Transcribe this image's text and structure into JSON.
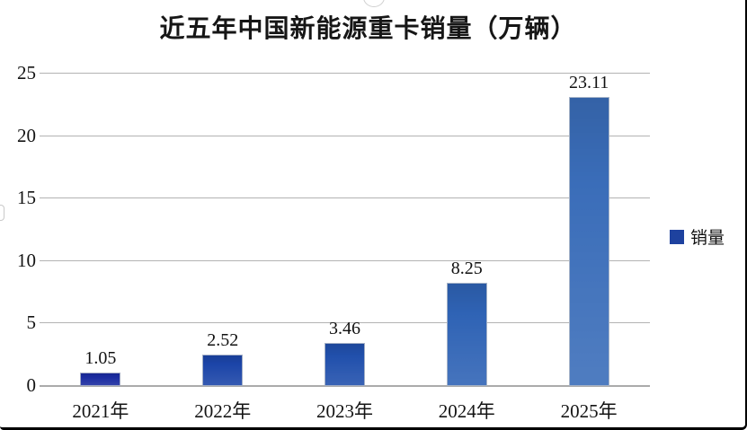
{
  "title": "近五年中国新能源重卡销量（万辆）",
  "legend": {
    "label": "销量",
    "swatch_color": "#1e429f"
  },
  "chart_data": {
    "type": "bar",
    "title": "近五年中国新能源重卡销量（万辆）",
    "categories": [
      "2021年",
      "2022年",
      "2023年",
      "2024年",
      "2025年"
    ],
    "series": [
      {
        "name": "销量",
        "values": [
          1.05,
          2.52,
          3.46,
          8.25,
          23.11
        ]
      }
    ],
    "value_labels": [
      "1.05",
      "2.52",
      "3.46",
      "8.25",
      "23.11"
    ],
    "xlabel": "",
    "ylabel": "",
    "ylim": [
      0,
      25
    ],
    "yticks": [
      0,
      5,
      10,
      15,
      20,
      25
    ],
    "grid": true,
    "legend_position": "right",
    "bar_colors": [
      "#1a2ba0",
      "#1c45a8",
      "#2150ac",
      "#2f63b5",
      "#3a6db9"
    ],
    "gridline_color": "#ababab"
  }
}
